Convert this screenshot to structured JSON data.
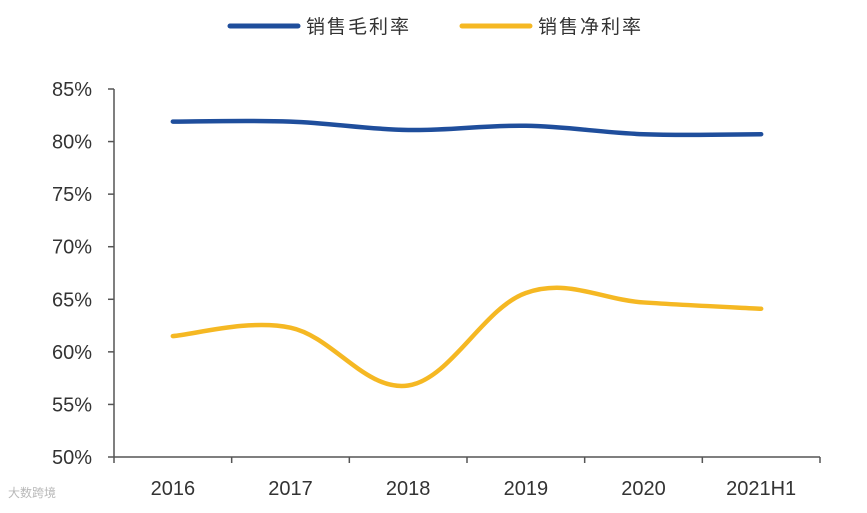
{
  "chart_data": {
    "type": "line",
    "categories": [
      "2016",
      "2017",
      "2018",
      "2019",
      "2020",
      "2021H1"
    ],
    "series": [
      {
        "name": "销售毛利率",
        "values": [
          81.9,
          81.9,
          81.1,
          81.5,
          80.7,
          80.7
        ],
        "color": "#1f4e9c"
      },
      {
        "name": "销售净利率",
        "values": [
          61.5,
          62.3,
          56.8,
          65.6,
          64.7,
          64.1
        ],
        "color": "#f5b823"
      }
    ],
    "y_ticks": [
      "50%",
      "55%",
      "60%",
      "65%",
      "70%",
      "75%",
      "80%",
      "85%"
    ],
    "ylim": [
      50,
      85
    ],
    "grid": false,
    "legend_position": "top-center",
    "smooth": true
  },
  "watermark": "大数跨境"
}
